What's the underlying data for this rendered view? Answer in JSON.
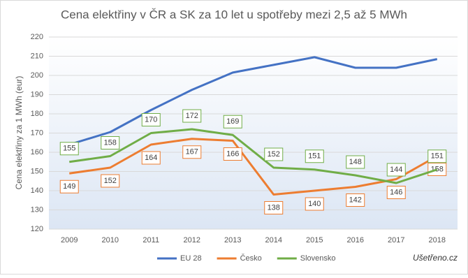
{
  "chart_data": {
    "type": "line",
    "title": "Cena elektřiny v ČR a SK za 10 let u spotřeby mezi 2,5 až 5 MWh",
    "y_label": "Cena elektřiny za 1 MWh (eur)",
    "categories": [
      "2009",
      "2010",
      "2011",
      "2012",
      "2013",
      "2014",
      "2015",
      "2016",
      "2017",
      "2018"
    ],
    "series": [
      {
        "name": "EU 28",
        "color": "#4472c4",
        "values": [
          164,
          170.5,
          182,
          192.5,
          201.5,
          205.5,
          209.5,
          204,
          204,
          208.5
        ]
      },
      {
        "name": "Česko",
        "color": "#ed7d31",
        "values": [
          149,
          152,
          164,
          167,
          166,
          138,
          140,
          142,
          146,
          158
        ],
        "labels": "below"
      },
      {
        "name": "Slovensko",
        "color": "#70ad47",
        "values": [
          155,
          158,
          170,
          172,
          169,
          152,
          151,
          148,
          144,
          151
        ],
        "labels": "above"
      }
    ],
    "ylim": [
      120,
      220
    ],
    "yticks": [
      120,
      130,
      140,
      150,
      160,
      170,
      180,
      190,
      200,
      210,
      220
    ],
    "grid": true,
    "legend": "bottom",
    "watermark": "Ušetřeno.cz"
  }
}
